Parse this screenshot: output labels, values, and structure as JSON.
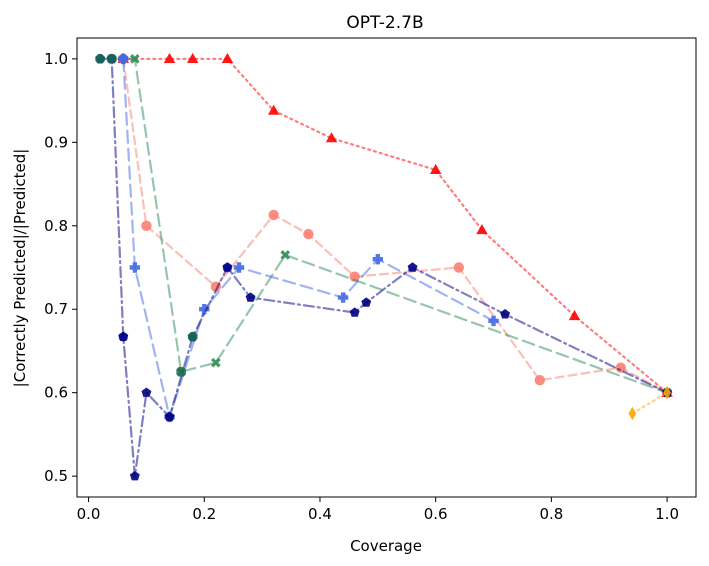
{
  "chart_data": {
    "type": "line",
    "title": "OPT-2.7B",
    "xlabel": "Coverage",
    "ylabel": "|Correctly Predicted|/|Predicted|",
    "xlim": [
      -0.02,
      1.05
    ],
    "ylim": [
      0.475,
      1.025
    ],
    "xticks": [
      0.0,
      0.2,
      0.4,
      0.6,
      0.8,
      1.0
    ],
    "xtick_labels": [
      "0.0",
      "0.2",
      "0.4",
      "0.6",
      "0.8",
      "1.0"
    ],
    "yticks": [
      0.5,
      0.6,
      0.7,
      0.8,
      0.9,
      1.0
    ],
    "ytick_labels": [
      "0.5",
      "0.6",
      "0.7",
      "0.8",
      "0.9",
      "1.0"
    ],
    "grid": false,
    "legend": "none",
    "series": [
      {
        "color": "#FF0000",
        "marker": "triangle",
        "dash": "dotted",
        "line_opacity": 0.5,
        "x": [
          0.06,
          0.14,
          0.18,
          0.24,
          0.32,
          0.42,
          0.6,
          0.68,
          0.84,
          1.0
        ],
        "y": [
          1.0,
          1.0,
          1.0,
          1.0,
          0.938,
          0.905,
          0.867,
          0.795,
          0.692,
          0.6
        ]
      },
      {
        "color": "#FA8072",
        "marker": "circle",
        "dash": "dashed",
        "line_opacity": 0.5,
        "x": [
          0.06,
          0.1,
          0.22,
          0.32,
          0.38,
          0.46,
          0.64,
          0.78,
          0.92,
          1.0
        ],
        "y": [
          1.0,
          0.8,
          0.727,
          0.813,
          0.79,
          0.739,
          0.75,
          0.615,
          0.63,
          0.6
        ]
      },
      {
        "color": "#2E8B57",
        "marker": "x",
        "dash": "longdash",
        "line_opacity": 0.5,
        "x": [
          0.04,
          0.08,
          0.16,
          0.22,
          0.34,
          1.0
        ],
        "y": [
          1.0,
          1.0,
          0.625,
          0.636,
          0.765,
          0.6
        ]
      },
      {
        "color": "#4169E1",
        "marker": "plus",
        "dash": "longdash",
        "line_opacity": 0.5,
        "x": [
          0.06,
          0.08,
          0.14,
          0.2,
          0.26,
          0.44,
          0.5,
          0.7
        ],
        "y": [
          1.0,
          0.75,
          0.571,
          0.7,
          0.75,
          0.714,
          0.76,
          0.686
        ]
      },
      {
        "color": "#4169E1",
        "marker": "hexagon",
        "dash": "none",
        "line_opacity": 0.0,
        "x": [
          0.06,
          0.06,
          0.14,
          0.24
        ],
        "y": [
          1.0,
          0.667,
          0.571,
          0.75
        ]
      },
      {
        "color": "#000080",
        "marker": "pentagon",
        "dash": "dashdot",
        "line_opacity": 0.5,
        "x": [
          0.02,
          0.04,
          0.06,
          0.08,
          0.1,
          0.14,
          0.18,
          0.24,
          0.28,
          0.46,
          0.48,
          0.56,
          0.72,
          1.0
        ],
        "y": [
          1.0,
          1.0,
          0.667,
          0.5,
          0.6,
          0.571,
          0.667,
          0.75,
          0.714,
          0.696,
          0.708,
          0.75,
          0.694,
          0.6
        ]
      },
      {
        "color": "#1F6E55",
        "marker": "octagon",
        "dash": "none",
        "line_opacity": 0.0,
        "x": [
          0.02,
          0.04,
          0.16,
          0.18
        ],
        "y": [
          1.0,
          1.0,
          0.625,
          0.667
        ]
      },
      {
        "color": "#FFA500",
        "marker": "diamond",
        "dash": "dotted",
        "line_opacity": 0.5,
        "x": [
          0.94,
          1.0
        ],
        "y": [
          0.575,
          0.6
        ]
      }
    ]
  }
}
